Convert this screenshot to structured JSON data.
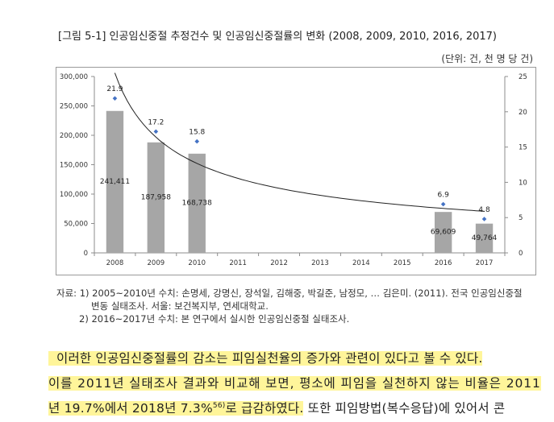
{
  "figure": {
    "title": "[그림 5-1] 인공임신중절 추정건수 및 인공임신중절률의 변화 (2008, 2009, 2010, 2016, 2017)",
    "unit": "(단위: 건, 천 명 당 건)"
  },
  "chart_data": {
    "type": "bar+line",
    "categories": [
      "2008",
      "2009",
      "2010",
      "2011",
      "2012",
      "2013",
      "2014",
      "2015",
      "2016",
      "2017"
    ],
    "series": [
      {
        "name": "인공임신중절 추정건수",
        "type": "bar",
        "axis": "left",
        "values": [
          241411,
          187958,
          168738,
          null,
          null,
          null,
          null,
          null,
          69609,
          49764
        ],
        "labels": [
          "241,411",
          "187,958",
          "168,738",
          "",
          "",
          "",
          "",
          "",
          "69,609",
          "49,764"
        ],
        "color": "#a6a6a6"
      },
      {
        "name": "인공임신중절률",
        "type": "scatter+trendline",
        "axis": "right",
        "values": [
          21.9,
          17.2,
          15.8,
          null,
          null,
          null,
          null,
          null,
          6.9,
          4.8
        ],
        "labels": [
          "21.9",
          "17.2",
          "15.8",
          "",
          "",
          "",
          "",
          "",
          "6.9",
          "4.8"
        ],
        "color": "#4472c4"
      }
    ],
    "y_left": {
      "range": [
        0,
        300000
      ],
      "ticks": [
        0,
        50000,
        100000,
        150000,
        200000,
        250000,
        300000
      ],
      "tick_labels": [
        "0",
        "50,000",
        "100,000",
        "150,000",
        "200,000",
        "250,000",
        "300,000"
      ]
    },
    "y_right": {
      "range": [
        0,
        25
      ],
      "ticks": [
        0,
        5,
        10,
        15,
        20,
        25
      ],
      "tick_labels": [
        "0",
        "5",
        "10",
        "15",
        "20",
        "25"
      ]
    },
    "trendline_color": "#222222"
  },
  "notes": {
    "line1": "자료: 1) 2005~2010년 수치: 손명세, 강명신, 장석일, 김해중, 박길준, 남정모, … 김은미. (2011). 전국 인공임신중절",
    "line2": "변동 실태조사. 서울: 보건복지부, 연세대학교.",
    "line3": "2) 2016~2017년 수치: 본 연구에서 실시한 인공임신중절 실태조사."
  },
  "body": {
    "p1": "이러한 인공임신중절률의 감소는 피임실천율의 증가와 관련이 있다고 볼 수 있다.",
    "p2": "이를 2011년 실태조사 결과와 비교해 보면, 평소에 피임을 실천하지 않는 비율은 2011",
    "p3_hl": "년 19.7%에서 2018년 7.3%",
    "p3_sup": "56)",
    "p3_hl_end": "로 급감하였다.",
    "p3_rest": " 또한 피임방법(복수응답)에 있어서 콘"
  }
}
